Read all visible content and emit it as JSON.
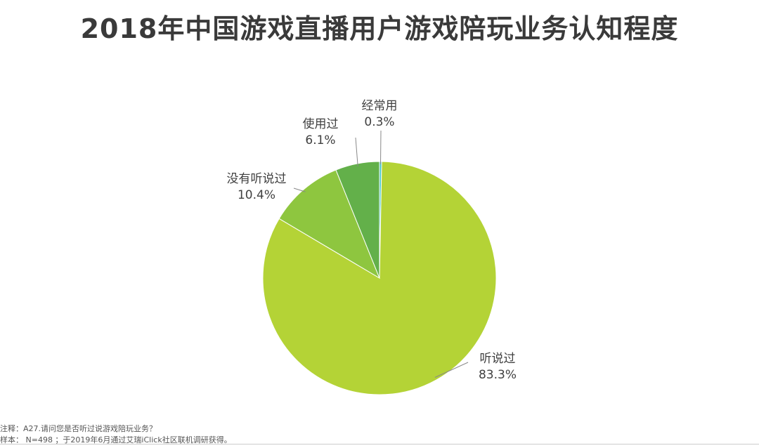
{
  "chart_data": {
    "type": "pie",
    "title": "2018年中国游戏直播用户游戏陪玩业务认知程度",
    "slices": [
      {
        "name": "经常用",
        "value": 0.3,
        "label": "0.3%",
        "color": "#3ec6c8"
      },
      {
        "name": "听说过",
        "value": 83.3,
        "label": "83.3%",
        "color": "#b4d336"
      },
      {
        "name": "没有听说过",
        "value": 10.4,
        "label": "10.4%",
        "color": "#8ec63f"
      },
      {
        "name": "使用过",
        "value": 6.1,
        "label": "6.1%",
        "color": "#63b04a"
      }
    ]
  },
  "footnote": {
    "note": "注释：A27.请问您是否听过说游戏陪玩业务？",
    "sample": "样本：  N=498 ；于2019年6月通过艾瑞iClick社区联机调研获得。"
  }
}
